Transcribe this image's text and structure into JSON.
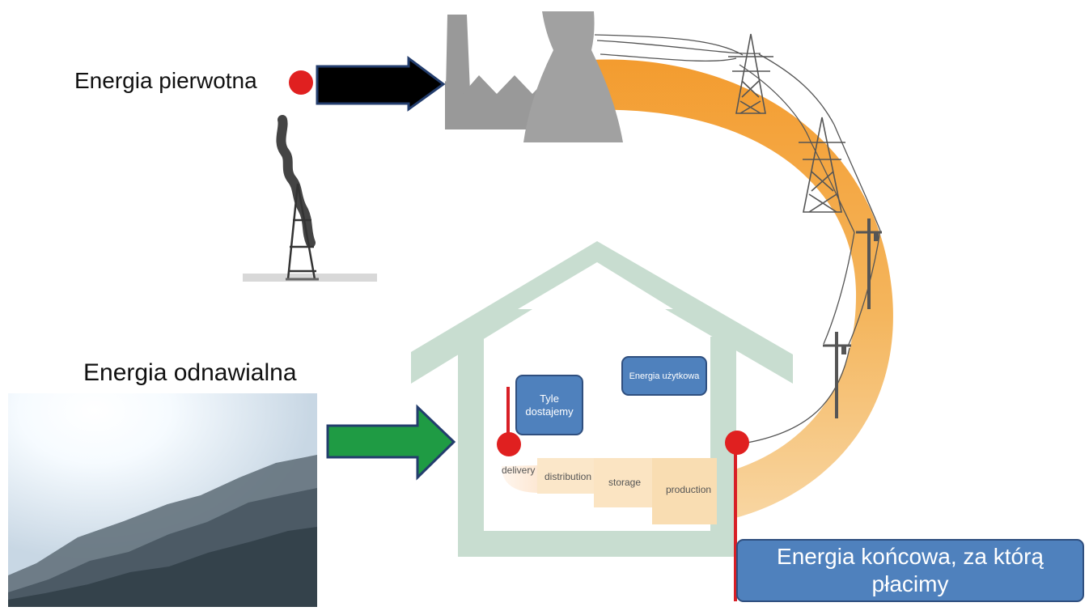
{
  "labels": {
    "primary": "Energia pierwotna",
    "renewable": "Energia odnawialna"
  },
  "boxes": {
    "tyle": "Tyle dostajemy",
    "uzytkowa": "Energia użytkowa",
    "koncowa": "Energia końcowa, za którą płacimy"
  },
  "stages": {
    "delivery": "delivery",
    "distribution": "distribution",
    "storage": "storage",
    "production": "production"
  },
  "colors": {
    "accent_orange": "#f3a33c",
    "house_green": "#c8ddd0",
    "note_blue": "#4f81bd",
    "point_red": "#e02020",
    "arrow_green": "#1f9b44",
    "arrow_black": "#000000"
  }
}
